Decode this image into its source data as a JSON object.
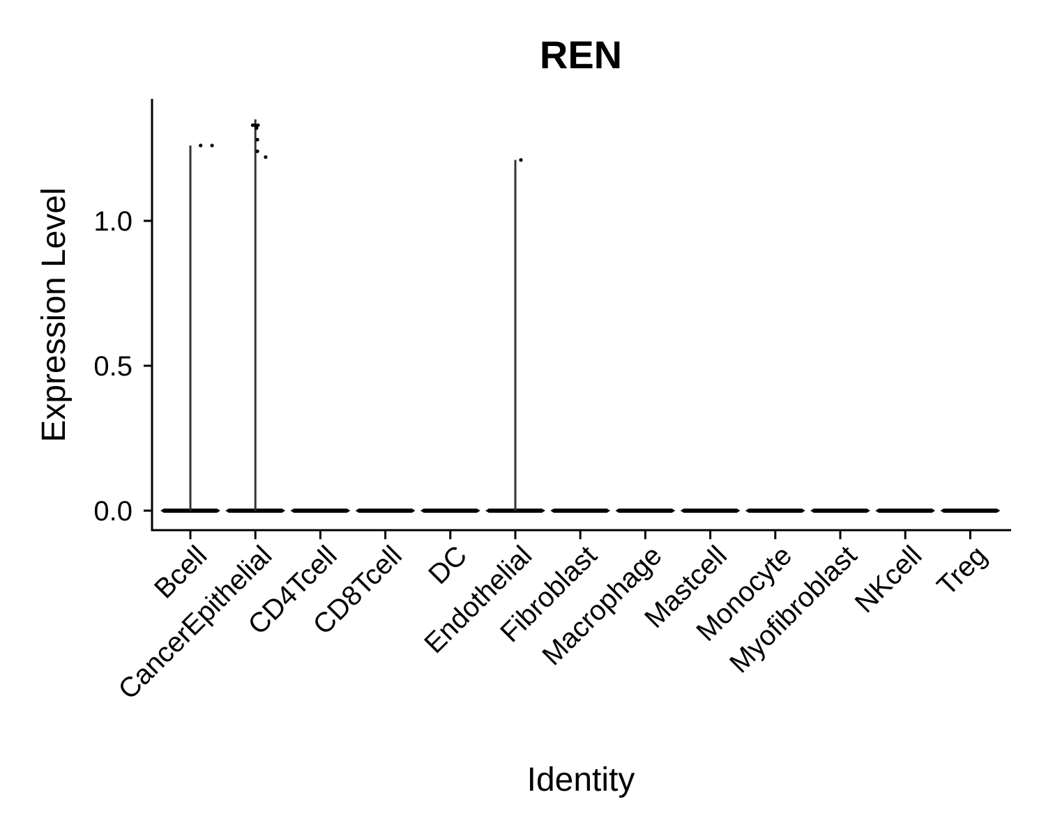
{
  "chart_data": {
    "type": "violin",
    "title": "REN",
    "xlabel": "Identity",
    "ylabel": "Expression Level",
    "ylim": [
      -0.07,
      1.42
    ],
    "yticks": [
      0.0,
      0.5,
      1.0
    ],
    "ytick_labels": [
      "0.0",
      "0.5",
      "1.0"
    ],
    "grid": false,
    "legend": "none",
    "categories": [
      "Bcell",
      "CancerEpithelial",
      "CD4Tcell",
      "CD8Tcell",
      "DC",
      "Endothelial",
      "Fibroblast",
      "Macrophage",
      "Mastcell",
      "Monocyte",
      "Myofibroblast",
      "NKcell",
      "Treg"
    ],
    "violins": [
      {
        "category": "Bcell",
        "max": 1.26
      },
      {
        "category": "CancerEpithelial",
        "max": 1.35
      },
      {
        "category": "CD4Tcell",
        "max": 0
      },
      {
        "category": "CD8Tcell",
        "max": 0
      },
      {
        "category": "DC",
        "max": 0
      },
      {
        "category": "Endothelial",
        "max": 1.21
      },
      {
        "category": "Fibroblast",
        "max": 0
      },
      {
        "category": "Macrophage",
        "max": 0
      },
      {
        "category": "Mastcell",
        "max": 0
      },
      {
        "category": "Monocyte",
        "max": 0
      },
      {
        "category": "Myofibroblast",
        "max": 0
      },
      {
        "category": "NKcell",
        "max": 0
      },
      {
        "category": "Treg",
        "max": 0
      }
    ],
    "points": [
      {
        "category": "Bcell",
        "jitter": 0.35,
        "y": 1.26
      },
      {
        "category": "Bcell",
        "jitter": 0.74,
        "y": 1.26
      },
      {
        "category": "CancerEpithelial",
        "jitter": -0.09,
        "y": 1.33
      },
      {
        "category": "CancerEpithelial",
        "jitter": -0.01,
        "y": 1.33
      },
      {
        "category": "CancerEpithelial",
        "jitter": 0.04,
        "y": 1.32
      },
      {
        "category": "CancerEpithelial",
        "jitter": 0.09,
        "y": 1.33
      },
      {
        "category": "CancerEpithelial",
        "jitter": 0.07,
        "y": 1.28
      },
      {
        "category": "CancerEpithelial",
        "jitter": 0.07,
        "y": 1.24
      },
      {
        "category": "CancerEpithelial",
        "jitter": 0.35,
        "y": 1.22
      },
      {
        "category": "Endothelial",
        "jitter": 0.19,
        "y": 1.21
      }
    ],
    "colors": {
      "violin_line": "#333333",
      "point": "#000000",
      "axis": "#000000"
    }
  }
}
